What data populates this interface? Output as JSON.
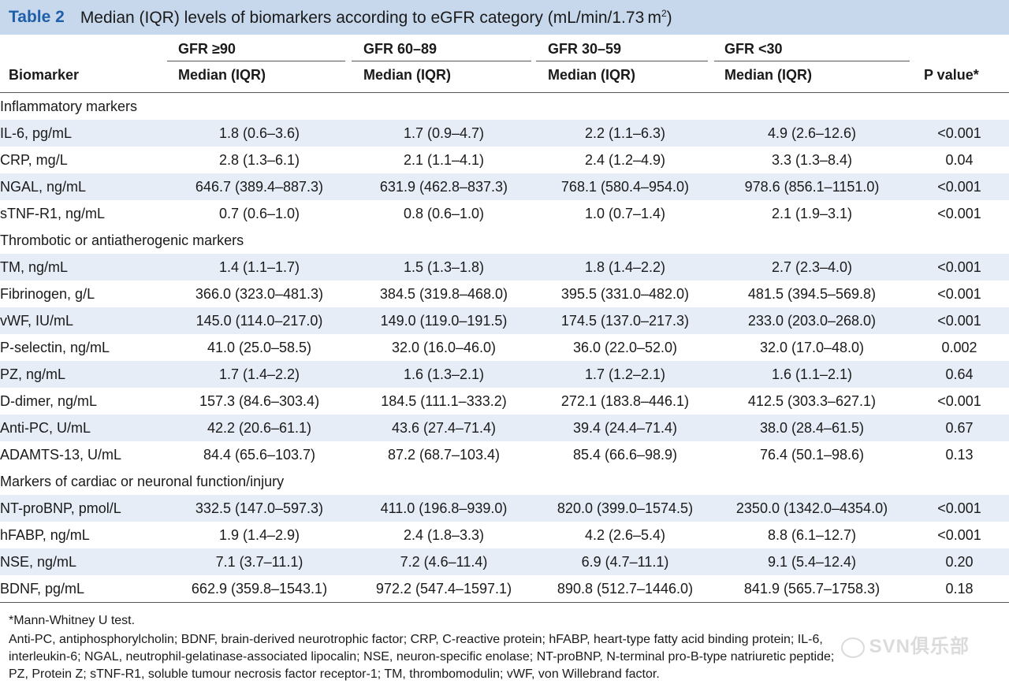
{
  "title": {
    "label": "Table 2",
    "text": "Median (IQR) levels of biomarkers according to eGFR category (mL/min/1.73 m",
    "superscript": "2",
    "close": ")"
  },
  "header": {
    "biomarker": "Biomarker",
    "groups": [
      "GFR ≥90",
      "GFR 60–89",
      "GFR 30–59",
      "GFR <30"
    ],
    "sub_label": "Median (IQR)",
    "p_value": "P value*"
  },
  "sections": [
    {
      "title": "Inflammatory markers",
      "rows": [
        {
          "name": "IL-6, pg/mL",
          "v1": "1.8 (0.6–3.6)",
          "v2": "1.7 (0.9–4.7)",
          "v3": "2.2 (1.1–6.3)",
          "v4": "4.9 (2.6–12.6)",
          "p": "<0.001"
        },
        {
          "name": "CRP, mg/L",
          "v1": "2.8 (1.3–6.1)",
          "v2": "2.1 (1.1–4.1)",
          "v3": "2.4 (1.2–4.9)",
          "v4": "3.3 (1.3–8.4)",
          "p": "0.04"
        },
        {
          "name": "NGAL, ng/mL",
          "v1": "646.7 (389.4–887.3)",
          "v2": "631.9 (462.8–837.3)",
          "v3": "768.1 (580.4–954.0)",
          "v4": "978.6 (856.1–1151.0)",
          "p": "<0.001"
        },
        {
          "name": "sTNF-R1, ng/mL",
          "v1": "0.7 (0.6–1.0)",
          "v2": "0.8 (0.6–1.0)",
          "v3": "1.0 (0.7–1.4)",
          "v4": "2.1 (1.9–3.1)",
          "p": "<0.001"
        }
      ]
    },
    {
      "title": "Thrombotic or antiatherogenic markers",
      "rows": [
        {
          "name": "TM, ng/mL",
          "v1": "1.4 (1.1–1.7)",
          "v2": "1.5 (1.3–1.8)",
          "v3": "1.8 (1.4–2.2)",
          "v4": "2.7 (2.3–4.0)",
          "p": "<0.001"
        },
        {
          "name": "Fibrinogen, g/L",
          "v1": "366.0 (323.0–481.3)",
          "v2": "384.5 (319.8–468.0)",
          "v3": "395.5 (331.0–482.0)",
          "v4": "481.5 (394.5–569.8)",
          "p": "<0.001"
        },
        {
          "name": "vWF, IU/mL",
          "v1": "145.0 (114.0–217.0)",
          "v2": "149.0 (119.0–191.5)",
          "v3": "174.5 (137.0–217.3)",
          "v4": "233.0 (203.0–268.0)",
          "p": "<0.001"
        },
        {
          "name": "P-selectin, ng/mL",
          "v1": "41.0 (25.0–58.5)",
          "v2": "32.0 (16.0–46.0)",
          "v3": "36.0 (22.0–52.0)",
          "v4": "32.0 (17.0–48.0)",
          "p": "0.002"
        },
        {
          "name": "PZ, ng/mL",
          "v1": "1.7 (1.4–2.2)",
          "v2": "1.6 (1.3–2.1)",
          "v3": "1.7 (1.2–2.1)",
          "v4": "1.6 (1.1–2.1)",
          "p": "0.64"
        },
        {
          "name": "D-dimer, ng/mL",
          "v1": "157.3 (84.6–303.4)",
          "v2": "184.5 (111.1–333.2)",
          "v3": "272.1 (183.8–446.1)",
          "v4": "412.5 (303.3–627.1)",
          "p": "<0.001"
        },
        {
          "name": "Anti-PC, U/mL",
          "v1": "42.2 (20.6–61.1)",
          "v2": "43.6 (27.4–71.4)",
          "v3": "39.4 (24.4–71.4)",
          "v4": "38.0 (28.4–61.5)",
          "p": "0.67"
        },
        {
          "name": "ADAMTS-13, U/mL",
          "v1": "84.4 (65.6–103.7)",
          "v2": "87.2 (68.7–103.4)",
          "v3": "85.4 (66.6–98.9)",
          "v4": "76.4 (50.1–98.6)",
          "p": "0.13"
        }
      ]
    },
    {
      "title": "Markers of cardiac or neuronal function/injury",
      "rows": [
        {
          "name": "NT-proBNP, pmol/L",
          "v1": "332.5 (147.0–597.3)",
          "v2": "411.0 (196.8–939.0)",
          "v3": "820.0 (399.0–1574.5)",
          "v4": "2350.0 (1342.0–4354.0)",
          "p": "<0.001"
        },
        {
          "name": "hFABP, ng/mL",
          "v1": "1.9 (1.4–2.9)",
          "v2": "2.4 (1.8–3.3)",
          "v3": "4.2 (2.6–5.4)",
          "v4": "8.8 (6.1–12.7)",
          "p": "<0.001"
        },
        {
          "name": "NSE, ng/mL",
          "v1": "7.1 (3.7–11.1)",
          "v2": "7.2 (4.6–11.4)",
          "v3": "6.9 (4.7–11.1)",
          "v4": "9.1 (5.4–12.4)",
          "p": "0.20"
        },
        {
          "name": "BDNF, pg/mL",
          "v1": "662.9 (359.8–1543.1)",
          "v2": "972.2 (547.4–1597.1)",
          "v3": "890.8 (512.7–1446.0)",
          "v4": "841.9 (565.7–1758.3)",
          "p": "0.18"
        }
      ]
    }
  ],
  "footnotes": [
    "*Mann-Whitney U test.",
    "Anti-PC, antiphosphorylcholin; BDNF, brain-derived neurotrophic factor; CRP, C-reactive protein; hFABP, heart-type fatty acid binding protein; IL-6,",
    "interleukin-6; NGAL, neutrophil-gelatinase-associated lipocalin; NSE, neuron-specific enolase; NT-proBNP, N-terminal pro-B-type natriuretic peptide;",
    "PZ, Protein Z; sTNF-R1, soluble tumour necrosis factor receptor-1; TM, thrombomodulin; vWF, von Willebrand factor."
  ],
  "watermark": "SVN俱乐部"
}
